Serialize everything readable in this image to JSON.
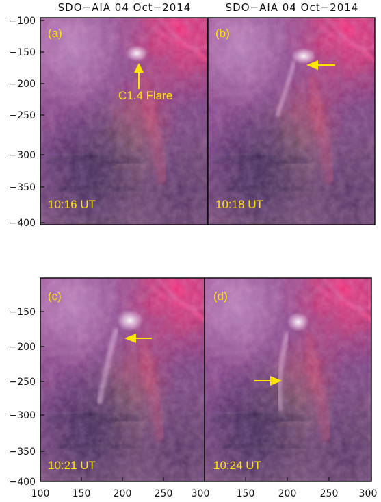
{
  "figure": {
    "top_titles": [
      "SDO−AIA 04 Oct−2014",
      "SDO−AIA 04 Oct−2014"
    ],
    "colors": {
      "annotation": "#ffe600",
      "frame": "#111111"
    },
    "panels": [
      {
        "label": "(a)",
        "time": "10:16 UT",
        "y_ticks": [
          "−100",
          "−150",
          "−200",
          "−250",
          "−300",
          "−350",
          "−400"
        ],
        "annotation": "C1.4 Flare",
        "arrow": "up"
      },
      {
        "label": "(b)",
        "time": "10:18 UT",
        "arrow": "left"
      },
      {
        "label": "(c)",
        "time": "10:21 UT",
        "y_ticks": [
          "−150",
          "−200",
          "−250",
          "−300",
          "−350",
          "−400"
        ],
        "arrow": "left"
      },
      {
        "label": "(d)",
        "time": "10:24 UT",
        "arrow": "right"
      }
    ],
    "x_ticks_left": [
      "100",
      "150",
      "200",
      "250",
      "300"
    ],
    "x_ticks_right": [
      "150",
      "200",
      "250",
      "300"
    ]
  }
}
